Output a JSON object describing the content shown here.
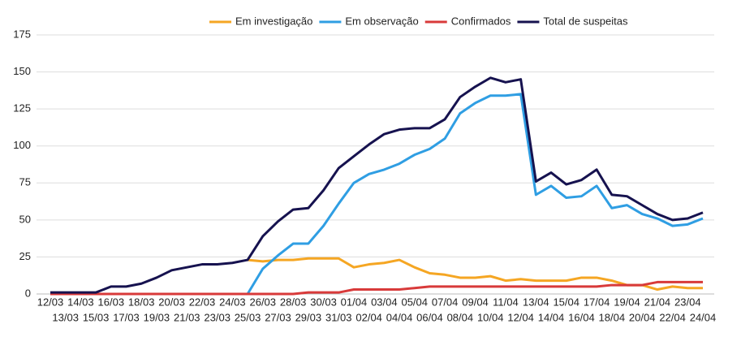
{
  "chart_data": {
    "type": "line",
    "categories": [
      "12/03",
      "13/03",
      "14/03",
      "15/03",
      "16/03",
      "17/03",
      "18/03",
      "19/03",
      "20/03",
      "21/03",
      "22/03",
      "23/03",
      "24/03",
      "25/03",
      "26/03",
      "27/03",
      "28/03",
      "29/03",
      "30/03",
      "31/03",
      "01/04",
      "02/04",
      "03/04",
      "04/04",
      "05/04",
      "06/04",
      "07/04",
      "08/04",
      "09/04",
      "10/04",
      "11/04",
      "12/04",
      "13/04",
      "14/04",
      "15/04",
      "16/04",
      "17/04",
      "18/04",
      "19/04",
      "20/04",
      "21/04",
      "22/04",
      "23/04",
      "24/04"
    ],
    "series": [
      {
        "name": "Em investigação",
        "color": "#f5a623",
        "values": [
          null,
          null,
          null,
          null,
          null,
          null,
          null,
          null,
          null,
          null,
          null,
          null,
          null,
          23,
          22,
          23,
          23,
          24,
          24,
          24,
          18,
          20,
          21,
          23,
          18,
          14,
          13,
          11,
          11,
          12,
          9,
          10,
          9,
          9,
          9,
          11,
          11,
          9,
          6,
          6,
          3,
          5,
          4,
          4
        ]
      },
      {
        "name": "Em observação",
        "color": "#2f9ee3",
        "values": [
          null,
          null,
          null,
          null,
          null,
          null,
          null,
          null,
          null,
          null,
          null,
          null,
          null,
          0,
          17,
          26,
          34,
          34,
          46,
          61,
          75,
          81,
          84,
          88,
          94,
          98,
          105,
          122,
          129,
          134,
          134,
          135,
          67,
          73,
          65,
          66,
          73,
          58,
          60,
          54,
          51,
          46,
          47,
          51
        ]
      },
      {
        "name": "Confirmados",
        "color": "#d83a3a",
        "values": [
          0,
          0,
          0,
          0,
          0,
          0,
          0,
          0,
          0,
          0,
          0,
          0,
          0,
          0,
          0,
          0,
          0,
          1,
          1,
          1,
          3,
          3,
          3,
          3,
          4,
          5,
          5,
          5,
          5,
          5,
          5,
          5,
          5,
          5,
          5,
          5,
          5,
          6,
          6,
          6,
          8,
          8,
          8,
          8
        ]
      },
      {
        "name": "Total de suspeitas",
        "color": "#16124f",
        "values": [
          1,
          1,
          1,
          1,
          5,
          5,
          7,
          11,
          16,
          18,
          20,
          20,
          21,
          23,
          39,
          49,
          57,
          58,
          70,
          85,
          93,
          101,
          108,
          111,
          112,
          112,
          118,
          133,
          140,
          146,
          143,
          145,
          76,
          82,
          74,
          77,
          84,
          67,
          66,
          60,
          54,
          50,
          51,
          55
        ]
      }
    ],
    "ylim": [
      0,
      175
    ],
    "yticks": [
      0,
      25,
      50,
      75,
      100,
      125,
      150,
      175
    ],
    "grid": true,
    "legend": "top"
  }
}
